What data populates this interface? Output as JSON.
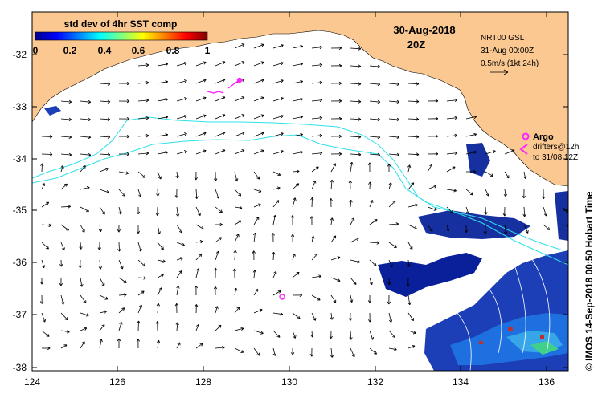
{
  "map": {
    "lon_ticks": [
      "124",
      "126",
      "128",
      "130",
      "132",
      "134",
      "136"
    ],
    "lat_ticks": [
      "-32",
      "-33",
      "-34",
      "-35",
      "-36",
      "-37",
      "-38"
    ],
    "lon_range": [
      124,
      136.5
    ],
    "lat_range": [
      -38.1,
      -31.4
    ]
  },
  "colorbar": {
    "title": "std dev of 4hr SST comp",
    "ticks": [
      "0",
      "0.2",
      "0.4",
      "0.6",
      "0.8",
      "1"
    ]
  },
  "header": {
    "date": "30-Aug-2018",
    "time": "20Z"
  },
  "legend": {
    "model": "NRT00 GSL",
    "valid": "31-Aug 00:00Z",
    "scale": "0.5m/s (1kt 24h)"
  },
  "argo": {
    "label": "Argo",
    "drifters_line1": "drifters@12h",
    "drifters_line2": "to 31/08 12Z"
  },
  "credit": "© IMOS 14-Sep-2018 00:50 Hobart Time",
  "colors": {
    "land": "#fbc891",
    "contour": "#2fe0e8",
    "argo": "#ff22ff",
    "frame": "#000000"
  }
}
